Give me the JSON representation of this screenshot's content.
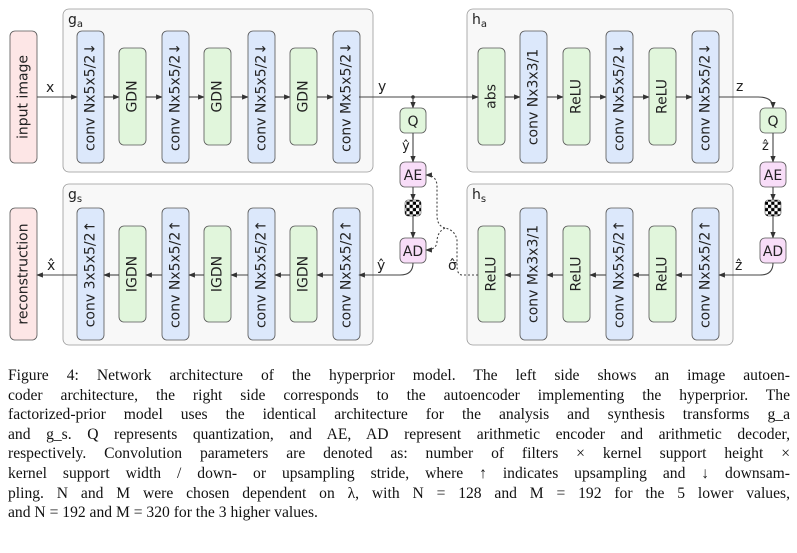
{
  "diagram": {
    "colors": {
      "conv": "#dce8fb",
      "nonlinear": "#e1f6dc",
      "io": "#fde6e6",
      "coder": "#f8ddf8",
      "group": "#f8f8f8",
      "stroke": "#555555"
    },
    "input": "input image",
    "output": "reconstruction",
    "ga": {
      "label": "g",
      "sub": "a",
      "layers": [
        "conv Nx5x5/2↓",
        "GDN",
        "conv Nx5x5/2↓",
        "GDN",
        "conv Nx5x5/2↓",
        "GDN",
        "conv Mx5x5/2↓"
      ]
    },
    "gs": {
      "label": "g",
      "sub": "s",
      "layers": [
        "conv 3x5x5/2↑",
        "IGDN",
        "conv Nx5x5/2↑",
        "IGDN",
        "conv Nx5x5/2↑",
        "IGDN",
        "conv Nx5x5/2↑"
      ]
    },
    "ha": {
      "label": "h",
      "sub": "a",
      "layers": [
        "abs",
        "conv Nx3x3/1",
        "ReLU",
        "conv Nx5x5/2↓",
        "ReLU",
        "conv Nx5x5/2↓"
      ]
    },
    "hs": {
      "label": "h",
      "sub": "s",
      "layers": [
        "ReLU",
        "conv Mx3x3/1",
        "ReLU",
        "conv Nx5x5/2↑",
        "ReLU",
        "conv Nx5x5/2↑"
      ]
    },
    "signals": {
      "x": "x",
      "y": "y",
      "z": "z",
      "y_hat": "ŷ",
      "z_hat": "ẑ",
      "x_hat": "x̂",
      "sigma_hat": "σ̂"
    },
    "blocks": {
      "q": "Q",
      "ae": "AE",
      "ad": "AD"
    },
    "icons": {
      "bitstream": "checkerboard-icon"
    }
  },
  "caption": {
    "lines": [
      "Figure 4: Network architecture of the hyperprior model. The left side shows an image autoen-",
      "coder architecture, the right side corresponds to the autoencoder implementing the hyperprior. The",
      "factorized-prior model uses the identical architecture for the analysis and synthesis transforms g_a",
      "and g_s. Q represents quantization, and AE, AD represent arithmetic encoder and arithmetic decoder,",
      "respectively. Convolution parameters are denoted as: number of filters × kernel support height ×",
      "kernel support width / down- or upsampling stride, where ↑ indicates upsampling and ↓ downsam-",
      "pling. N and M were chosen dependent on λ, with N = 128 and M = 192 for the 5 lower values,",
      "and N = 192 and M = 320 for the 3 higher values."
    ]
  }
}
